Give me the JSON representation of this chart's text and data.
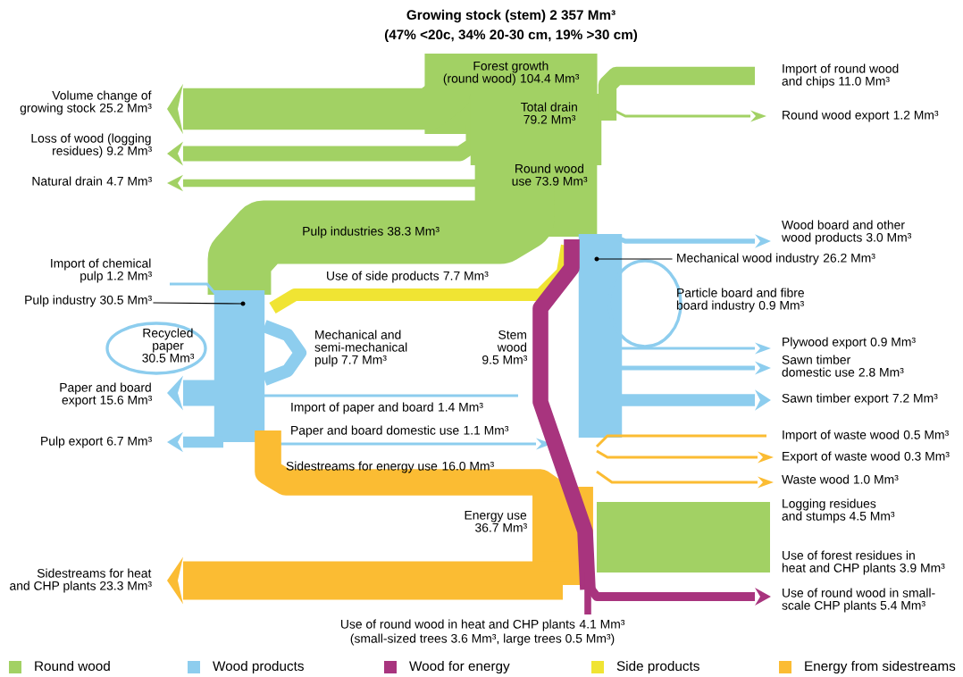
{
  "chart_data": {
    "type": "other",
    "title": "Growing stock (stem) 2 357 Mm³",
    "subtitle": "(47% <20c, 34% 20-30 cm, 19% >30 cm)",
    "categories": [
      "Forest growth\n(round wood)",
      "Volume change of\ngrowing stock",
      "Loss of wood (logging\nresidues)",
      "Natural drain",
      "Total drain",
      "Import of round wood\nand chips",
      "Round wood export",
      "Round wood\nuse",
      "Pulp industries",
      "Import of chemical\npulp",
      "Pulp industry",
      "Recycled\npaper",
      "Mechanical and\nsemi-mechanical\npulp",
      "Paper and board\nexport",
      "Pulp export",
      "Import of paper and board",
      "Paper and board domestic use",
      "Use of side products",
      "Sidestreams for energy use",
      "Energy use",
      "Sidestreams for heat\nand CHP plants",
      "Stem\nwood",
      "Mechanical wood industry",
      "Wood board and other\nwood products",
      "Particle board and fibre\nboard industry",
      "Plywood export",
      "Sawn timber\ndomestic use",
      "Sawn timber export",
      "Import of waste wood",
      "Export of waste wood",
      "Waste wood",
      "Logging residues\nand stumps",
      "Use of forest residues in\nheat and CHP plants",
      "Use of round wood in small-\nscale CHP plants",
      "Use of round wood in heat and CHP plants"
    ],
    "series": [
      {
        "name": "Round wood",
        "color": "#a2d164",
        "values": [
          104.4,
          25.2,
          9.2,
          4.7,
          79.2,
          11.0,
          1.2,
          73.9,
          38.3,
          null,
          null,
          null,
          null,
          null,
          null,
          null,
          null,
          null,
          null,
          null,
          null,
          null,
          null,
          null,
          null,
          null,
          null,
          null,
          null,
          null,
          null,
          4.5,
          3.9,
          null,
          null
        ],
        "value_labels": [
          "104.4 Mm³",
          "25.2 Mm³",
          "9.2 Mm³",
          "4.7 Mm³",
          "79.2 Mm³",
          "11.0 Mm³",
          "1.2 Mm³",
          "73.9 Mm³",
          "38.3 Mm³",
          null,
          null,
          null,
          null,
          null,
          null,
          null,
          null,
          null,
          null,
          null,
          null,
          null,
          null,
          null,
          null,
          null,
          null,
          null,
          null,
          null,
          null,
          "4.5 Mm³",
          "3.9 Mm³",
          null,
          null
        ]
      },
      {
        "name": "Wood products",
        "color": "#8dcdee",
        "values": [
          null,
          null,
          null,
          null,
          null,
          null,
          null,
          null,
          null,
          1.2,
          30.5,
          30.5,
          7.7,
          15.6,
          6.7,
          1.4,
          1.1,
          null,
          null,
          null,
          null,
          null,
          26.2,
          3.0,
          0.9,
          0.9,
          2.8,
          7.2,
          null,
          null,
          null,
          null,
          null,
          null,
          null
        ],
        "value_labels": [
          null,
          null,
          null,
          null,
          null,
          null,
          null,
          null,
          null,
          "1.2 Mm³",
          "30.5 Mm³",
          "30.5 Mm³",
          "7.7 Mm³",
          "15.6 Mm³",
          "6.7 Mm³",
          "1.4 Mm³",
          "1.1 Mm³",
          null,
          null,
          null,
          null,
          null,
          "26.2 Mm³",
          "3.0 Mm³",
          "0.9 Mm³",
          "0.9 Mm³",
          "2.8 Mm³",
          "7.2 Mm³",
          null,
          null,
          null,
          null,
          null,
          null,
          null
        ]
      },
      {
        "name": "Wood for energy",
        "color": "#a8347e",
        "values": [
          null,
          null,
          null,
          null,
          null,
          null,
          null,
          null,
          null,
          null,
          null,
          null,
          null,
          null,
          null,
          null,
          null,
          null,
          null,
          null,
          null,
          9.5,
          null,
          null,
          null,
          null,
          null,
          null,
          null,
          null,
          null,
          null,
          null,
          5.4,
          4.1
        ],
        "value_labels": [
          null,
          null,
          null,
          null,
          null,
          null,
          null,
          null,
          null,
          null,
          null,
          null,
          null,
          null,
          null,
          null,
          null,
          null,
          null,
          null,
          null,
          "9.5 Mm³",
          null,
          null,
          null,
          null,
          null,
          null,
          null,
          null,
          null,
          null,
          null,
          "5.4 Mm³",
          "4.1 Mm³"
        ]
      },
      {
        "name": "Side products",
        "color": "#f0e433",
        "values": [
          null,
          null,
          null,
          null,
          null,
          null,
          null,
          null,
          null,
          null,
          null,
          null,
          null,
          null,
          null,
          null,
          null,
          7.7,
          null,
          null,
          null,
          null,
          null,
          null,
          null,
          null,
          null,
          null,
          null,
          null,
          null,
          null,
          null,
          null,
          null
        ],
        "value_labels": [
          null,
          null,
          null,
          null,
          null,
          null,
          null,
          null,
          null,
          null,
          null,
          null,
          null,
          null,
          null,
          null,
          null,
          "7.7 Mm³",
          null,
          null,
          null,
          null,
          null,
          null,
          null,
          null,
          null,
          null,
          null,
          null,
          null,
          null,
          null,
          null,
          null
        ]
      },
      {
        "name": "Energy from sidestreams",
        "color": "#fbbc33",
        "values": [
          null,
          null,
          null,
          null,
          null,
          null,
          null,
          null,
          null,
          null,
          null,
          null,
          null,
          null,
          null,
          null,
          null,
          null,
          16.0,
          36.7,
          23.3,
          null,
          null,
          null,
          null,
          null,
          null,
          null,
          0.5,
          0.3,
          1.0,
          null,
          null,
          null,
          null
        ],
        "value_labels": [
          null,
          null,
          null,
          null,
          null,
          null,
          null,
          null,
          null,
          null,
          null,
          null,
          null,
          null,
          null,
          null,
          null,
          null,
          "16.0 Mm³",
          "36.7 Mm³",
          "23.3 Mm³",
          null,
          null,
          null,
          null,
          null,
          null,
          null,
          "0.5 Mm³",
          "0.3 Mm³",
          "1.0 Mm³",
          null,
          null,
          null,
          null
        ]
      }
    ],
    "annotations": [
      "(small-sized trees 3.6 Mm³, large trees 0.5 Mm³)"
    ],
    "legend": "bottom"
  }
}
